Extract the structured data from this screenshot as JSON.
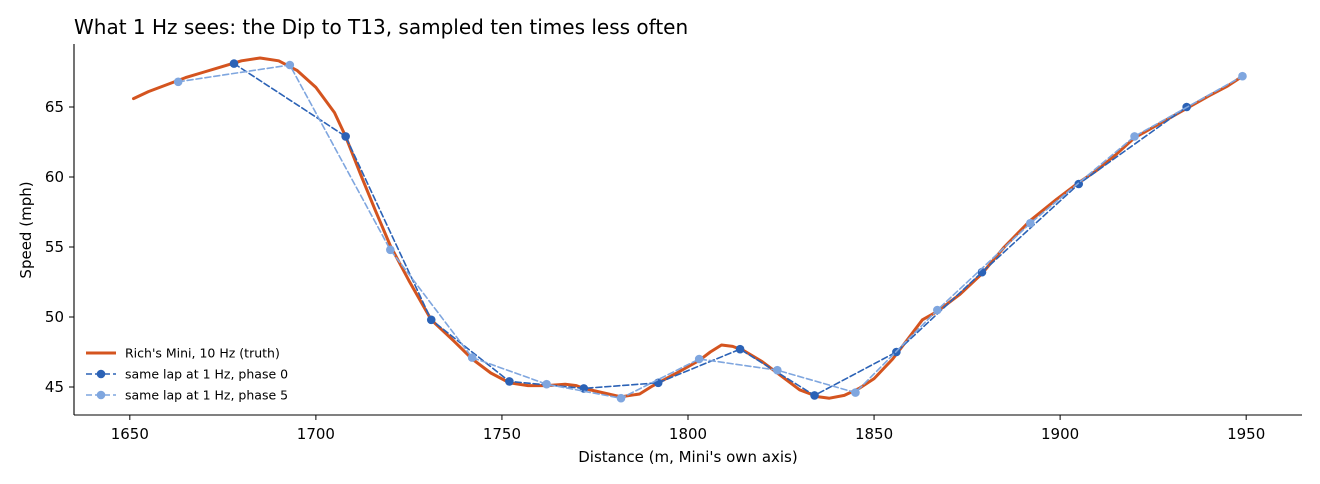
{
  "chart_data": {
    "type": "line",
    "title": "What 1 Hz sees: the Dip to T13, sampled ten times less often",
    "xlabel": "Distance (m, Mini's own axis)",
    "ylabel": "Speed (mph)",
    "xlim": [
      1635,
      1965
    ],
    "ylim": [
      43,
      69.5
    ],
    "xticks": [
      1650,
      1700,
      1750,
      1800,
      1850,
      1900,
      1950
    ],
    "yticks": [
      45,
      50,
      55,
      60,
      65
    ],
    "grid": false,
    "legend_position": "lower-left",
    "series": [
      {
        "name": "Rich's Mini, 10 Hz (truth)",
        "style": "solid",
        "color": "#d4541f",
        "x": [
          1651,
          1655,
          1660,
          1665,
          1670,
          1675,
          1680,
          1685,
          1690,
          1695,
          1700,
          1705,
          1708,
          1712,
          1716,
          1720,
          1725,
          1731,
          1737,
          1742,
          1747,
          1752,
          1757,
          1762,
          1767,
          1770,
          1772,
          1777,
          1782,
          1787,
          1790,
          1792,
          1797,
          1803,
          1806,
          1809,
          1812,
          1815,
          1820,
          1825,
          1830,
          1835,
          1838,
          1842,
          1846,
          1850,
          1855,
          1859,
          1863,
          1867,
          1873,
          1879,
          1885,
          1892,
          1899,
          1905,
          1910,
          1915,
          1920,
          1926,
          1934,
          1940,
          1945,
          1949
        ],
        "y": [
          65.6,
          66.1,
          66.6,
          67.1,
          67.5,
          67.9,
          68.3,
          68.5,
          68.3,
          67.6,
          66.4,
          64.6,
          62.9,
          60.2,
          57.6,
          55.1,
          52.6,
          49.8,
          48.3,
          47.0,
          46.0,
          45.3,
          45.1,
          45.1,
          45.2,
          45.1,
          44.9,
          44.6,
          44.3,
          44.5,
          45.0,
          45.3,
          46.0,
          46.9,
          47.5,
          48.0,
          47.9,
          47.6,
          46.8,
          45.8,
          44.8,
          44.3,
          44.2,
          44.4,
          44.9,
          45.6,
          47.0,
          48.4,
          49.8,
          50.4,
          51.6,
          53.1,
          55.0,
          56.9,
          58.4,
          59.6,
          60.5,
          61.6,
          62.8,
          63.7,
          64.9,
          65.8,
          66.5,
          67.2
        ]
      },
      {
        "name": "same lap at 1 Hz, phase 0",
        "style": "dashed",
        "color": "#2b62b6",
        "x": [
          1678,
          1708,
          1731,
          1752,
          1772,
          1792,
          1814,
          1834,
          1856,
          1879,
          1905,
          1934
        ],
        "y": [
          68.1,
          62.9,
          49.8,
          45.4,
          44.9,
          45.3,
          47.7,
          44.4,
          47.5,
          53.2,
          59.5,
          65.0
        ]
      },
      {
        "name": "same lap at 1 Hz, phase 5",
        "style": "dashed",
        "color": "#7fa6df",
        "x": [
          1663,
          1693,
          1720,
          1742,
          1762,
          1782,
          1803,
          1824,
          1845,
          1867,
          1892,
          1920,
          1949
        ],
        "y": [
          66.8,
          68.0,
          54.8,
          47.1,
          45.2,
          44.2,
          47.0,
          46.2,
          44.6,
          50.5,
          56.7,
          62.9,
          67.2
        ]
      }
    ]
  }
}
